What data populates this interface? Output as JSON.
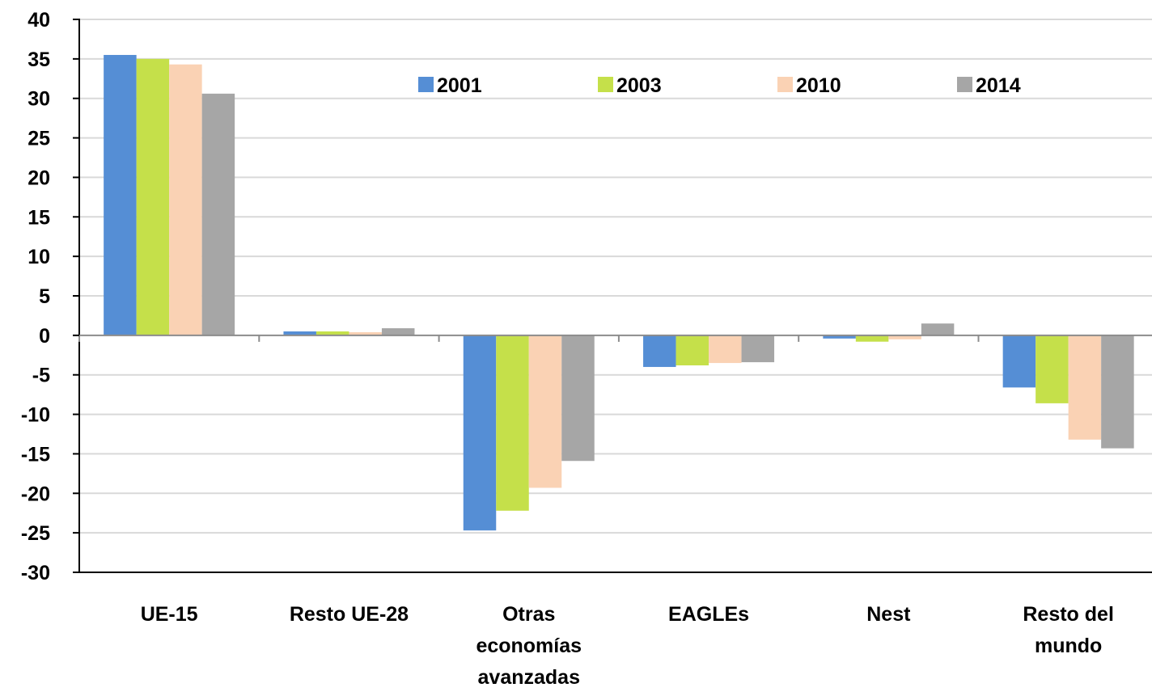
{
  "chart_data": {
    "type": "bar",
    "title": "",
    "xlabel": "",
    "ylabel": "",
    "categories": [
      [
        "UE-15"
      ],
      [
        "Resto UE-28"
      ],
      [
        "Otras",
        "economías",
        "avanzadas"
      ],
      [
        "EAGLEs"
      ],
      [
        "Nest"
      ],
      [
        "Resto del",
        "mundo"
      ]
    ],
    "series": [
      {
        "name": "2001",
        "color": "#558ed5",
        "values": [
          35.5,
          0.5,
          -24.7,
          -4.0,
          -0.4,
          -6.6
        ]
      },
      {
        "name": "2003",
        "color": "#c5e04a",
        "values": [
          35.0,
          0.5,
          -22.2,
          -3.8,
          -0.8,
          -8.6
        ]
      },
      {
        "name": "2010",
        "color": "#fad2b4",
        "values": [
          34.3,
          0.4,
          -19.3,
          -3.5,
          -0.5,
          -13.2
        ]
      },
      {
        "name": "2014",
        "color": "#a6a6a6",
        "values": [
          30.6,
          0.9,
          -15.9,
          -3.4,
          1.5,
          -14.3
        ]
      }
    ],
    "ylim": [
      -30,
      40
    ],
    "yticks": [
      40,
      35,
      30,
      25,
      20,
      15,
      10,
      5,
      0,
      -5,
      -10,
      -15,
      -20,
      -25,
      -30
    ],
    "grid": true,
    "legend_position": "top-right"
  }
}
